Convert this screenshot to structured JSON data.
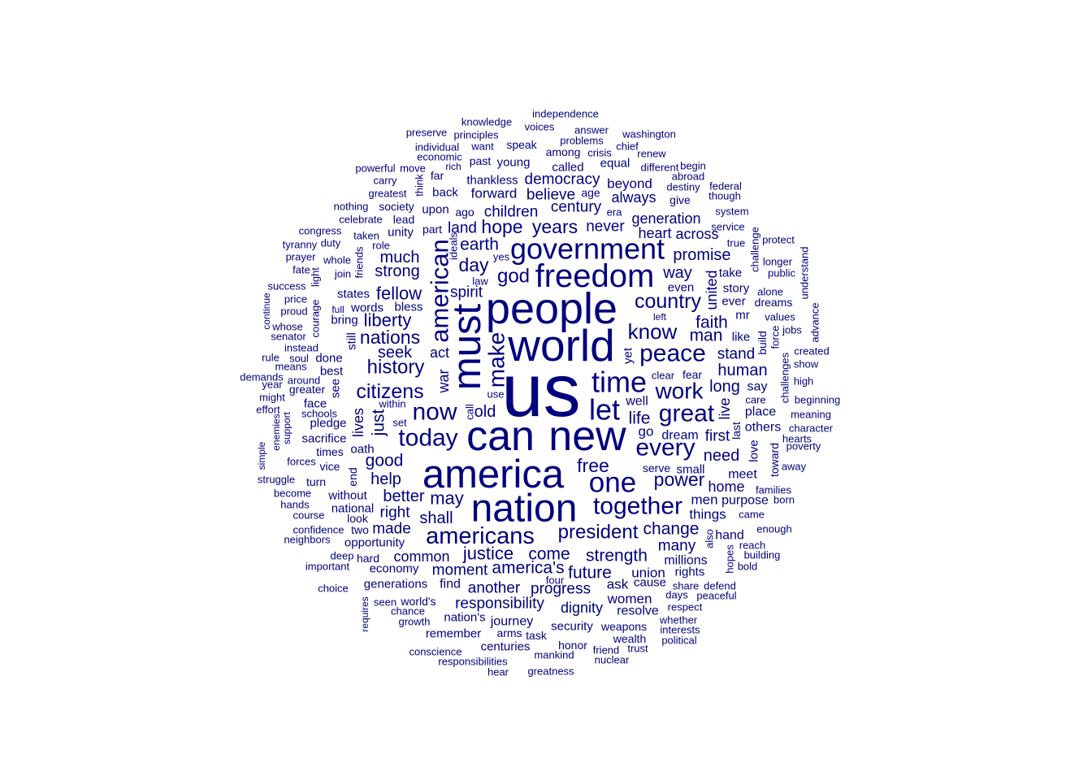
{
  "chart_data": {
    "type": "wordcloud",
    "color": "#00007f",
    "background": "#ffffff",
    "words": [
      {
        "text": "us",
        "size": 10
      },
      {
        "text": "people",
        "size": 7.6
      },
      {
        "text": "world",
        "size": 7.8
      },
      {
        "text": "can",
        "size": 7.3
      },
      {
        "text": "new",
        "size": 7.3
      },
      {
        "text": "america",
        "size": 6.9
      },
      {
        "text": "must",
        "size": 6.9
      },
      {
        "text": "nation",
        "size": 6.8
      },
      {
        "text": "freedom",
        "size": 5.8
      },
      {
        "text": "government",
        "size": 5.2
      },
      {
        "text": "time",
        "size": 5.1
      },
      {
        "text": "let",
        "size": 5.1
      },
      {
        "text": "one",
        "size": 5.1
      },
      {
        "text": "american",
        "size": 4.5
      },
      {
        "text": "americans",
        "size": 4.3
      },
      {
        "text": "peace",
        "size": 4.4
      },
      {
        "text": "great",
        "size": 4.4
      },
      {
        "text": "every",
        "size": 4.3
      },
      {
        "text": "together",
        "size": 4.3
      },
      {
        "text": "today",
        "size": 4.3
      },
      {
        "text": "now",
        "size": 4.3
      },
      {
        "text": "make",
        "size": 4.1
      },
      {
        "text": "work",
        "size": 4.1
      },
      {
        "text": "know",
        "size": 3.8
      },
      {
        "text": "country",
        "size": 3.7
      },
      {
        "text": "citizens",
        "size": 3.7
      },
      {
        "text": "history",
        "size": 3.5
      },
      {
        "text": "president",
        "size": 3.5
      },
      {
        "text": "god",
        "size": 3.5
      },
      {
        "text": "years",
        "size": 3.3
      },
      {
        "text": "hope",
        "size": 3.3
      },
      {
        "text": "power",
        "size": 3.3
      },
      {
        "text": "day",
        "size": 3.3
      },
      {
        "text": "free",
        "size": 3.3
      },
      {
        "text": "nations",
        "size": 3.3
      },
      {
        "text": "liberty",
        "size": 3.2
      },
      {
        "text": "fellow",
        "size": 3.2
      },
      {
        "text": "justice",
        "size": 3.2
      },
      {
        "text": "strength",
        "size": 3.0
      },
      {
        "text": "america's",
        "size": 3.0
      },
      {
        "text": "come",
        "size": 3.0
      },
      {
        "text": "future",
        "size": 3.0
      },
      {
        "text": "may",
        "size": 3.1
      },
      {
        "text": "earth",
        "size": 3.0
      },
      {
        "text": "life",
        "size": 3.0
      },
      {
        "text": "faith",
        "size": 3.0
      },
      {
        "text": "change",
        "size": 3.0
      },
      {
        "text": "man",
        "size": 3.0
      },
      {
        "text": "good",
        "size": 3.0
      },
      {
        "text": "just",
        "size": 3.0
      },
      {
        "text": "long",
        "size": 2.8
      },
      {
        "text": "human",
        "size": 2.8
      },
      {
        "text": "need",
        "size": 2.8
      },
      {
        "text": "way",
        "size": 2.8
      },
      {
        "text": "old",
        "size": 2.8
      },
      {
        "text": "seek",
        "size": 2.8
      },
      {
        "text": "much",
        "size": 2.8
      },
      {
        "text": "strong",
        "size": 2.8
      },
      {
        "text": "help",
        "size": 2.8
      },
      {
        "text": "better",
        "size": 2.8
      },
      {
        "text": "shall",
        "size": 2.8
      },
      {
        "text": "right",
        "size": 2.6
      },
      {
        "text": "promise",
        "size": 2.8
      },
      {
        "text": "century",
        "size": 2.6
      },
      {
        "text": "children",
        "size": 2.6
      },
      {
        "text": "land",
        "size": 2.6
      },
      {
        "text": "never",
        "size": 2.6
      },
      {
        "text": "democracy",
        "size": 2.6
      },
      {
        "text": "believe",
        "size": 2.6
      },
      {
        "text": "spirit",
        "size": 2.6
      },
      {
        "text": "first",
        "size": 2.6
      },
      {
        "text": "stand",
        "size": 2.6
      },
      {
        "text": "many",
        "size": 2.6
      },
      {
        "text": "responsibility",
        "size": 2.6
      },
      {
        "text": "common",
        "size": 2.6
      },
      {
        "text": "made",
        "size": 2.6
      },
      {
        "text": "moment",
        "size": 2.6
      },
      {
        "text": "another",
        "size": 2.6
      },
      {
        "text": "progress",
        "size": 2.6
      },
      {
        "text": "dignity",
        "size": 2.6
      },
      {
        "text": "live",
        "size": 2.6
      },
      {
        "text": "united",
        "size": 2.6
      },
      {
        "text": "home",
        "size": 2.6
      },
      {
        "text": "lives",
        "size": 2.6
      },
      {
        "text": "act",
        "size": 2.6
      },
      {
        "text": "war",
        "size": 2.6
      },
      {
        "text": "generation",
        "size": 2.4
      },
      {
        "text": "heart",
        "size": 2.4
      },
      {
        "text": "across",
        "size": 2.4
      },
      {
        "text": "always",
        "size": 2.4
      },
      {
        "text": "beyond",
        "size": 2.4
      },
      {
        "text": "forward",
        "size": 2.4
      },
      {
        "text": "go",
        "size": 2.4
      },
      {
        "text": "dream",
        "size": 2.2
      },
      {
        "text": "well",
        "size": 2.2
      },
      {
        "text": "say",
        "size": 2.2
      },
      {
        "text": "place",
        "size": 2.2
      },
      {
        "text": "others",
        "size": 2.2
      },
      {
        "text": "meet",
        "size": 2.2
      },
      {
        "text": "small",
        "size": 2.2
      },
      {
        "text": "serve",
        "size": 2.0
      },
      {
        "text": "men",
        "size": 2.4
      },
      {
        "text": "purpose",
        "size": 2.2
      },
      {
        "text": "things",
        "size": 2.4
      },
      {
        "text": "hand",
        "size": 2.2
      },
      {
        "text": "millions",
        "size": 2.2
      },
      {
        "text": "rights",
        "size": 2.2
      },
      {
        "text": "union",
        "size": 2.4
      },
      {
        "text": "cause",
        "size": 2.2
      },
      {
        "text": "ask",
        "size": 2.4
      },
      {
        "text": "women",
        "size": 2.4
      },
      {
        "text": "resolve",
        "size": 2.2
      },
      {
        "text": "security",
        "size": 2.2
      },
      {
        "text": "weapons",
        "size": 2.2
      },
      {
        "text": "journey",
        "size": 2.2
      },
      {
        "text": "nation's",
        "size": 2.2
      },
      {
        "text": "remember",
        "size": 2.2
      },
      {
        "text": "centuries",
        "size": 2.2
      },
      {
        "text": "arms",
        "size": 2.0
      },
      {
        "text": "task",
        "size": 2.0
      },
      {
        "text": "honor",
        "size": 2.0
      },
      {
        "text": "wealth",
        "size": 2.0
      },
      {
        "text": "find",
        "size": 2.2
      },
      {
        "text": "generations",
        "size": 2.2
      },
      {
        "text": "world's",
        "size": 2.0
      },
      {
        "text": "economy",
        "size": 2.2
      },
      {
        "text": "opportunity",
        "size": 2.2
      },
      {
        "text": "national",
        "size": 2.2
      },
      {
        "text": "without",
        "size": 2.2
      },
      {
        "text": "two",
        "size": 2.0
      },
      {
        "text": "look",
        "size": 2.0
      },
      {
        "text": "hard",
        "size": 2.0
      },
      {
        "text": "deep",
        "size": 2.0
      },
      {
        "text": "bless",
        "size": 2.2
      },
      {
        "text": "words",
        "size": 2.2
      },
      {
        "text": "states",
        "size": 2.2
      },
      {
        "text": "bring",
        "size": 2.2
      },
      {
        "text": "still",
        "size": 2.2
      },
      {
        "text": "done",
        "size": 2.2
      },
      {
        "text": "best",
        "size": 2.2
      },
      {
        "text": "see",
        "size": 2.2
      },
      {
        "text": "face",
        "size": 2.2
      },
      {
        "text": "pledge",
        "size": 2.2
      },
      {
        "text": "sacrifice",
        "size": 2.2
      },
      {
        "text": "oath",
        "size": 2.2
      },
      {
        "text": "times",
        "size": 2.0
      },
      {
        "text": "end",
        "size": 2.2
      },
      {
        "text": "vice",
        "size": 2.0
      },
      {
        "text": "turn",
        "size": 2.0
      },
      {
        "text": "set",
        "size": 1.8
      },
      {
        "text": "within",
        "size": 1.8
      },
      {
        "text": "use",
        "size": 1.8
      },
      {
        "text": "call",
        "size": 1.8
      },
      {
        "text": "clear",
        "size": 1.8
      },
      {
        "text": "fear",
        "size": 2.0
      },
      {
        "text": "yet",
        "size": 2.2
      },
      {
        "text": "left",
        "size": 1.8
      },
      {
        "text": "even",
        "size": 2.2
      },
      {
        "text": "ever",
        "size": 2.2
      },
      {
        "text": "mr",
        "size": 2.2
      },
      {
        "text": "like",
        "size": 2.2
      },
      {
        "text": "take",
        "size": 2.2
      },
      {
        "text": "story",
        "size": 2.2
      },
      {
        "text": "love",
        "size": 2.2
      },
      {
        "text": "last",
        "size": 2.0
      },
      {
        "text": "toward",
        "size": 2.0
      },
      {
        "text": "law",
        "size": 1.8
      },
      {
        "text": "yes",
        "size": 1.8
      },
      {
        "text": "ideals",
        "size": 1.8
      },
      {
        "text": "part",
        "size": 2.0
      },
      {
        "text": "upon",
        "size": 2.2
      },
      {
        "text": "ago",
        "size": 2.0
      },
      {
        "text": "unity",
        "size": 2.2
      },
      {
        "text": "society",
        "size": 2.0
      },
      {
        "text": "lead",
        "size": 2.0
      },
      {
        "text": "back",
        "size": 2.2
      },
      {
        "text": "thankless",
        "size": 2.2
      },
      {
        "text": "age",
        "size": 2.0
      },
      {
        "text": "era",
        "size": 1.8
      },
      {
        "text": "called",
        "size": 2.2
      },
      {
        "text": "equal",
        "size": 2.2
      },
      {
        "text": "among",
        "size": 2.0
      },
      {
        "text": "young",
        "size": 2.2
      },
      {
        "text": "past",
        "size": 2.0
      },
      {
        "text": "far",
        "size": 2.0
      },
      {
        "text": "want",
        "size": 1.8
      },
      {
        "text": "speak",
        "size": 2.0
      },
      {
        "text": "crisis",
        "size": 1.8
      },
      {
        "text": "chief",
        "size": 1.8
      },
      {
        "text": "renew",
        "size": 1.8
      },
      {
        "text": "problems",
        "size": 1.8
      },
      {
        "text": "answer",
        "size": 1.8
      },
      {
        "text": "washington",
        "size": 1.8
      },
      {
        "text": "voices",
        "size": 1.8
      },
      {
        "text": "independence",
        "size": 1.8
      },
      {
        "text": "knowledge",
        "size": 1.8
      },
      {
        "text": "principles",
        "size": 1.8
      },
      {
        "text": "preserve",
        "size": 1.8
      },
      {
        "text": "individual",
        "size": 1.8
      },
      {
        "text": "economic",
        "size": 1.8
      },
      {
        "text": "rich",
        "size": 1.6
      },
      {
        "text": "powerful",
        "size": 1.8
      },
      {
        "text": "move",
        "size": 1.8
      },
      {
        "text": "different",
        "size": 1.8
      },
      {
        "text": "begin",
        "size": 1.8
      },
      {
        "text": "abroad",
        "size": 1.8
      },
      {
        "text": "destiny",
        "size": 1.8
      },
      {
        "text": "federal",
        "size": 1.8
      },
      {
        "text": "give",
        "size": 2.0
      },
      {
        "text": "though",
        "size": 1.8
      },
      {
        "text": "system",
        "size": 1.8
      },
      {
        "text": "service",
        "size": 1.8
      },
      {
        "text": "challenge",
        "size": 1.8
      },
      {
        "text": "protect",
        "size": 1.8
      },
      {
        "text": "true",
        "size": 1.8
      },
      {
        "text": "longer",
        "size": 1.8
      },
      {
        "text": "understand",
        "size": 1.8
      },
      {
        "text": "public",
        "size": 1.8
      },
      {
        "text": "alone",
        "size": 1.8
      },
      {
        "text": "dreams",
        "size": 1.8
      },
      {
        "text": "values",
        "size": 1.8
      },
      {
        "text": "jobs",
        "size": 1.8
      },
      {
        "text": "advance",
        "size": 1.8
      },
      {
        "text": "build",
        "size": 2.0
      },
      {
        "text": "force",
        "size": 1.8
      },
      {
        "text": "challenges",
        "size": 1.8
      },
      {
        "text": "created",
        "size": 1.8
      },
      {
        "text": "show",
        "size": 1.8
      },
      {
        "text": "high",
        "size": 1.8
      },
      {
        "text": "care",
        "size": 1.8
      },
      {
        "text": "beginning",
        "size": 1.8
      },
      {
        "text": "meaning",
        "size": 1.8
      },
      {
        "text": "character",
        "size": 1.8
      },
      {
        "text": "hearts",
        "size": 1.8
      },
      {
        "text": "poverty",
        "size": 1.8
      },
      {
        "text": "away",
        "size": 1.8
      },
      {
        "text": "families",
        "size": 1.8
      },
      {
        "text": "born",
        "size": 1.8
      },
      {
        "text": "came",
        "size": 1.8
      },
      {
        "text": "enough",
        "size": 1.8
      },
      {
        "text": "reach",
        "size": 1.8
      },
      {
        "text": "building",
        "size": 1.8
      },
      {
        "text": "bold",
        "size": 1.8
      },
      {
        "text": "also",
        "size": 1.8
      },
      {
        "text": "hopes",
        "size": 1.8
      },
      {
        "text": "defend",
        "size": 1.8
      },
      {
        "text": "share",
        "size": 1.8
      },
      {
        "text": "peaceful",
        "size": 1.8
      },
      {
        "text": "days",
        "size": 1.8
      },
      {
        "text": "respect",
        "size": 1.8
      },
      {
        "text": "whether",
        "size": 1.8
      },
      {
        "text": "interests",
        "size": 1.8
      },
      {
        "text": "political",
        "size": 1.8
      },
      {
        "text": "trust",
        "size": 1.8
      },
      {
        "text": "friend",
        "size": 1.8
      },
      {
        "text": "nuclear",
        "size": 1.8
      },
      {
        "text": "mankind",
        "size": 1.8
      },
      {
        "text": "greatness",
        "size": 1.8
      },
      {
        "text": "hear",
        "size": 1.8
      },
      {
        "text": "responsibilities",
        "size": 1.8
      },
      {
        "text": "conscience",
        "size": 1.8
      },
      {
        "text": "growth",
        "size": 1.8
      },
      {
        "text": "chance",
        "size": 1.8
      },
      {
        "text": "seen",
        "size": 1.8
      },
      {
        "text": "requires",
        "size": 1.8
      },
      {
        "text": "four",
        "size": 1.8
      },
      {
        "text": "choice",
        "size": 1.8
      },
      {
        "text": "important",
        "size": 1.8
      },
      {
        "text": "neighbors",
        "size": 1.8
      },
      {
        "text": "confidence",
        "size": 1.8
      },
      {
        "text": "course",
        "size": 1.8
      },
      {
        "text": "hands",
        "size": 1.8
      },
      {
        "text": "become",
        "size": 1.8
      },
      {
        "text": "struggle",
        "size": 1.8
      },
      {
        "text": "forces",
        "size": 1.8
      },
      {
        "text": "simple",
        "size": 1.8
      },
      {
        "text": "enemies",
        "size": 1.6
      },
      {
        "text": "support",
        "size": 1.8
      },
      {
        "text": "schools",
        "size": 1.8
      },
      {
        "text": "effort",
        "size": 1.8
      },
      {
        "text": "might",
        "size": 1.8
      },
      {
        "text": "year",
        "size": 1.8
      },
      {
        "text": "demands",
        "size": 1.8
      },
      {
        "text": "around",
        "size": 1.8
      },
      {
        "text": "greater",
        "size": 2.0
      },
      {
        "text": "means",
        "size": 1.8
      },
      {
        "text": "rule",
        "size": 1.8
      },
      {
        "text": "soul",
        "size": 1.8
      },
      {
        "text": "instead",
        "size": 1.8
      },
      {
        "text": "senator",
        "size": 1.8
      },
      {
        "text": "whose",
        "size": 1.8
      },
      {
        "text": "proud",
        "size": 1.8
      },
      {
        "text": "courage",
        "size": 1.8
      },
      {
        "text": "continue",
        "size": 1.8
      },
      {
        "text": "price",
        "size": 1.8
      },
      {
        "text": "full",
        "size": 1.6
      },
      {
        "text": "success",
        "size": 1.8
      },
      {
        "text": "light",
        "size": 1.8
      },
      {
        "text": "join",
        "size": 1.8
      },
      {
        "text": "friends",
        "size": 1.8
      },
      {
        "text": "fate",
        "size": 1.8
      },
      {
        "text": "prayer",
        "size": 1.8
      },
      {
        "text": "whole",
        "size": 1.8
      },
      {
        "text": "tyranny",
        "size": 1.8
      },
      {
        "text": "duty",
        "size": 1.8
      },
      {
        "text": "role",
        "size": 1.8
      },
      {
        "text": "taken",
        "size": 1.8
      },
      {
        "text": "congress",
        "size": 1.8
      },
      {
        "text": "celebrate",
        "size": 1.8
      },
      {
        "text": "nothing",
        "size": 1.8
      },
      {
        "text": "greatest",
        "size": 1.8
      },
      {
        "text": "carry",
        "size": 1.8
      },
      {
        "text": "think",
        "size": 1.8
      }
    ]
  }
}
